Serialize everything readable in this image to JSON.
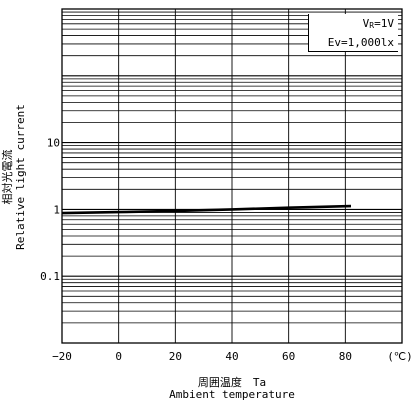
{
  "chart_data": {
    "type": "line",
    "ylabel_ja": "相対光電流",
    "ylabel_en": "Relative light current",
    "xlabel_ja": "周囲温度　Ta",
    "xlabel_en": "Ambient temperature",
    "x_unit": "(℃)",
    "x_ticks": [
      -20,
      0,
      20,
      40,
      60,
      80
    ],
    "y_ticks": [
      10,
      1,
      0.1
    ],
    "y_tick_labels": [
      "10",
      "1",
      "0.1"
    ],
    "xlim": [
      -20,
      100
    ],
    "ylim": [
      0.01,
      1000
    ],
    "y_scale": "log",
    "grid": true,
    "legend": {
      "position": "top-right",
      "lines": [
        {
          "main": "V",
          "sub": "R",
          "rest": "=1V"
        },
        {
          "main": "Ev=1,000lx",
          "sub": "",
          "rest": ""
        }
      ]
    },
    "series": [
      {
        "x": [
          -20,
          0,
          20,
          40,
          60,
          82
        ],
        "y": [
          0.88,
          0.91,
          0.95,
          1.0,
          1.06,
          1.12
        ]
      }
    ]
  }
}
